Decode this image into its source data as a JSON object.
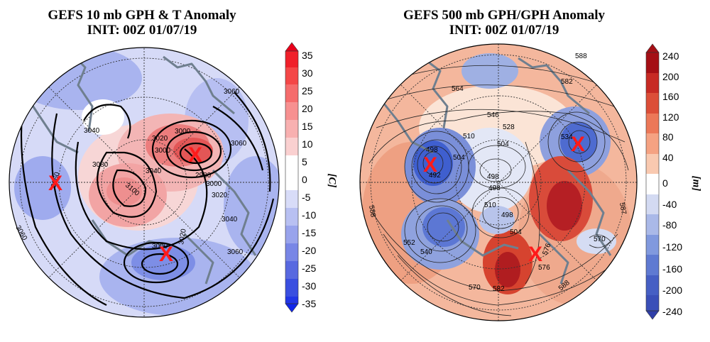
{
  "maps": [
    {
      "title": "GEFS 10 mb GPH & T Anomaly",
      "init": "INIT: 00Z 01/07/19",
      "colorbar": {
        "unit_label": "[C]",
        "ticks": [
          "35",
          "30",
          "25",
          "20",
          "15",
          "10",
          "5",
          "0",
          "-5",
          "-10",
          "-15",
          "-20",
          "-25",
          "-30",
          "-35"
        ]
      },
      "contour_labels": [
        "3060",
        "3060",
        "3040",
        "3020",
        "3000",
        "2980",
        "3000",
        "3020",
        "3080",
        "3040",
        "3060",
        "3100",
        "3000",
        "3040",
        "3060",
        "3060",
        "3000",
        "3020"
      ],
      "markers": [
        "X",
        "X",
        "X"
      ]
    },
    {
      "title": "GEFS 500 mb GPH/GPH Anomaly",
      "init": "INIT: 00Z 01/07/19",
      "colorbar": {
        "unit_label": "[m]",
        "ticks": [
          "240",
          "200",
          "160",
          "120",
          "80",
          "40",
          "0",
          "-40",
          "-80",
          "-120",
          "-160",
          "-200",
          "-240"
        ]
      },
      "contour_labels": [
        "564",
        "588",
        "582",
        "546",
        "528",
        "534",
        "510",
        "504",
        "498",
        "498",
        "492",
        "504",
        "498",
        "510",
        "498",
        "504",
        "576",
        "588",
        "552",
        "540",
        "570",
        "582",
        "576",
        "588",
        "570",
        "587"
      ],
      "markers": [
        "X",
        "X",
        "X"
      ]
    }
  ],
  "colors": {
    "marker": "#ff1a1a",
    "warm": "#d7301f",
    "cold": "#3a5bd9"
  }
}
